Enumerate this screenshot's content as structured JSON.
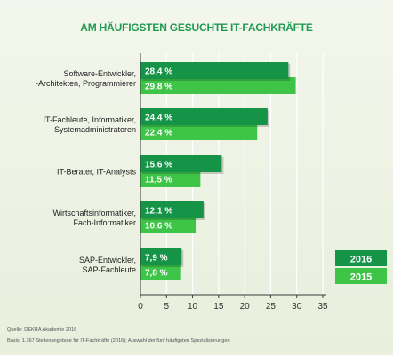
{
  "title": "AM HÄUFIGSTEN GESUCHTE IT-FACHKRÄFTE",
  "footer": {
    "source": "Quelle: DEKRA Akademie 2016",
    "basis": "Basis: 1.367 Stellenangebote für IT-Fachkräfte (2016); Auswahl der fünf häufigsten Spezialisierungen"
  },
  "colors": {
    "series_2016": "#159448",
    "series_2015": "#3ec548",
    "axis": "#3a3a3a",
    "grid": "#ffffff"
  },
  "chart_data": {
    "type": "bar",
    "orientation": "horizontal",
    "title": "AM HÄUFIGSTEN GESUCHTE IT-FACHKRÄFTE",
    "categories": [
      [
        "Software-Entwickler,",
        "-Architekten, Programmierer"
      ],
      [
        "IT-Fachleute, Informatiker,",
        "Systemadministratoren"
      ],
      [
        "IT-Berater, IT-Analysts"
      ],
      [
        "Wirtschaftsinformatiker,",
        "Fach-Informatiker"
      ],
      [
        "SAP-Entwickler,",
        "SAP-Fachleute"
      ]
    ],
    "series": [
      {
        "name": "2016",
        "values": [
          28.4,
          24.4,
          15.6,
          12.1,
          7.9
        ],
        "labels": [
          "28,4 %",
          "24,4 %",
          "15,6 %",
          "12,1 %",
          "7,9 %"
        ]
      },
      {
        "name": "2015",
        "values": [
          29.8,
          22.4,
          11.5,
          10.6,
          7.8
        ],
        "labels": [
          "29,8 %",
          "22,4 %",
          "11,5 %",
          "10,6 %",
          "7,8 %"
        ]
      }
    ],
    "xlim": [
      0,
      35
    ],
    "xticks": [
      0,
      5,
      10,
      15,
      20,
      25,
      30,
      35
    ],
    "grid": true,
    "legend_position": "right"
  }
}
